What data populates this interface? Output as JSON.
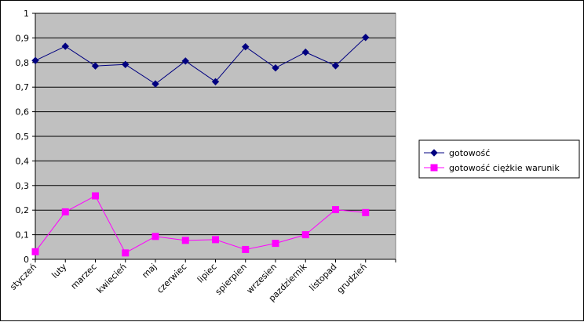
{
  "chart_data": {
    "type": "line",
    "title": "",
    "xlabel": "",
    "ylabel": "",
    "categories": [
      "styczeń",
      "luty",
      "marzec",
      "kwiecień",
      "maj",
      "czerwiec",
      "lipiec",
      "spierpien",
      "wrzesien",
      "pazdziernik",
      "listopad",
      "grudzień"
    ],
    "ylim": [
      0,
      1
    ],
    "yticks": [
      "0",
      "0,1",
      "0,2",
      "0,3",
      "0,4",
      "0,5",
      "0,6",
      "0,7",
      "0,8",
      "0,9",
      "1"
    ],
    "grid": true,
    "legend_position": "right",
    "plot_background": "#c0c0c0",
    "series": [
      {
        "name": "gotowość",
        "color": "#000080",
        "marker": "diamond",
        "values": [
          0.808,
          0.866,
          0.786,
          0.792,
          0.713,
          0.806,
          0.722,
          0.864,
          0.778,
          0.842,
          0.787,
          0.902
        ]
      },
      {
        "name": "gotowość ciężkie warunik",
        "color": "#ff00ff",
        "marker": "square",
        "values": [
          0.031,
          0.193,
          0.258,
          0.026,
          0.093,
          0.077,
          0.08,
          0.04,
          0.065,
          0.1,
          0.202,
          0.19
        ]
      }
    ]
  }
}
